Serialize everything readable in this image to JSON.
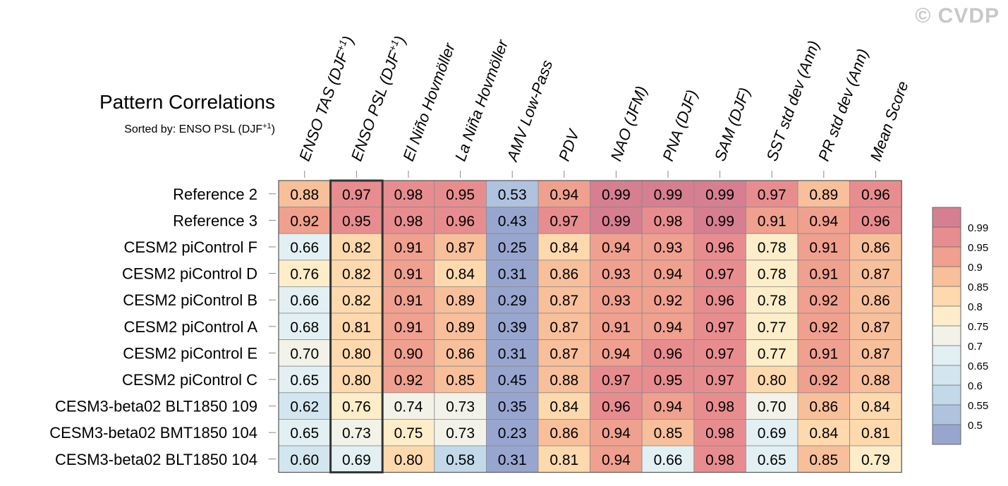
{
  "watermark": "© CVDP",
  "chart_data": {
    "type": "heatmap",
    "title": "Pattern Correlations",
    "subtitle_prefix": "Sorted by: ENSO PSL (DJF",
    "subtitle_sup": "+1",
    "subtitle_suffix": ")",
    "sorted_column_index": 1,
    "columns": [
      {
        "label": "ENSO TAS (DJF",
        "sup": "+1",
        "suffix": ")"
      },
      {
        "label": "ENSO PSL (DJF",
        "sup": "+1",
        "suffix": ")"
      },
      {
        "label": "El Niño Hovmöller"
      },
      {
        "label": "La Niña Hovmöller"
      },
      {
        "label": "AMV Low-Pass"
      },
      {
        "label": "PDV"
      },
      {
        "label": "NAO (JFM)"
      },
      {
        "label": "PNA (DJF)"
      },
      {
        "label": "SAM (DJF)"
      },
      {
        "label": "SST std dev (Ann)"
      },
      {
        "label": "PR std dev (Ann)"
      },
      {
        "label": "Mean Score"
      }
    ],
    "rows": [
      {
        "name": "Reference 2",
        "values": [
          "0.88",
          "0.97",
          "0.98",
          "0.95",
          "0.53",
          "0.94",
          "0.99",
          "0.99",
          "0.99",
          "0.97",
          "0.89",
          "0.96"
        ]
      },
      {
        "name": "Reference 3",
        "values": [
          "0.92",
          "0.95",
          "0.98",
          "0.96",
          "0.43",
          "0.97",
          "0.99",
          "0.98",
          "0.99",
          "0.91",
          "0.94",
          "0.96"
        ]
      },
      {
        "name": "CESM2 piControl F",
        "values": [
          "0.66",
          "0.82",
          "0.91",
          "0.87",
          "0.25",
          "0.84",
          "0.94",
          "0.93",
          "0.96",
          "0.78",
          "0.91",
          "0.86"
        ]
      },
      {
        "name": "CESM2 piControl D",
        "values": [
          "0.76",
          "0.82",
          "0.91",
          "0.84",
          "0.31",
          "0.86",
          "0.93",
          "0.94",
          "0.97",
          "0.78",
          "0.91",
          "0.87"
        ]
      },
      {
        "name": "CESM2 piControl B",
        "values": [
          "0.66",
          "0.82",
          "0.91",
          "0.89",
          "0.29",
          "0.87",
          "0.93",
          "0.92",
          "0.96",
          "0.78",
          "0.92",
          "0.86"
        ]
      },
      {
        "name": "CESM2 piControl A",
        "values": [
          "0.68",
          "0.81",
          "0.91",
          "0.89",
          "0.39",
          "0.87",
          "0.91",
          "0.94",
          "0.97",
          "0.77",
          "0.92",
          "0.87"
        ]
      },
      {
        "name": "CESM2 piControl E",
        "values": [
          "0.70",
          "0.80",
          "0.90",
          "0.86",
          "0.31",
          "0.87",
          "0.94",
          "0.96",
          "0.97",
          "0.77",
          "0.91",
          "0.87"
        ]
      },
      {
        "name": "CESM2 piControl C",
        "values": [
          "0.65",
          "0.80",
          "0.92",
          "0.85",
          "0.45",
          "0.88",
          "0.97",
          "0.95",
          "0.97",
          "0.80",
          "0.92",
          "0.88"
        ]
      },
      {
        "name": "CESM3-beta02 BLT1850 109",
        "values": [
          "0.62",
          "0.76",
          "0.74",
          "0.73",
          "0.35",
          "0.84",
          "0.96",
          "0.94",
          "0.98",
          "0.70",
          "0.86",
          "0.84"
        ]
      },
      {
        "name": "CESM3-beta02 BMT1850 104",
        "values": [
          "0.65",
          "0.73",
          "0.75",
          "0.73",
          "0.23",
          "0.86",
          "0.94",
          "0.85",
          "0.98",
          "0.69",
          "0.84",
          "0.81"
        ]
      },
      {
        "name": "CESM3-beta02 BLT1850 104",
        "values": [
          "0.60",
          "0.69",
          "0.80",
          "0.58",
          "0.31",
          "0.81",
          "0.94",
          "0.66",
          "0.98",
          "0.65",
          "0.85",
          "0.79"
        ]
      }
    ],
    "colorbar": {
      "thresholds": [
        0.5,
        0.55,
        0.6,
        0.65,
        0.7,
        0.75,
        0.8,
        0.85,
        0.9,
        0.95,
        0.99
      ],
      "labels": [
        "0.5",
        "0.55",
        "0.6",
        "0.65",
        "0.7",
        "0.75",
        "0.8",
        "0.85",
        "0.9",
        "0.95",
        "0.99"
      ],
      "colors": [
        "#98a6cf",
        "#afc3df",
        "#c3d9e9",
        "#d3e6ef",
        "#e3f0f3",
        "#f2f2e9",
        "#fdedc9",
        "#fdd9ad",
        "#f8bf9b",
        "#f0a08e",
        "#e88d8f",
        "#d67f91"
      ]
    }
  }
}
